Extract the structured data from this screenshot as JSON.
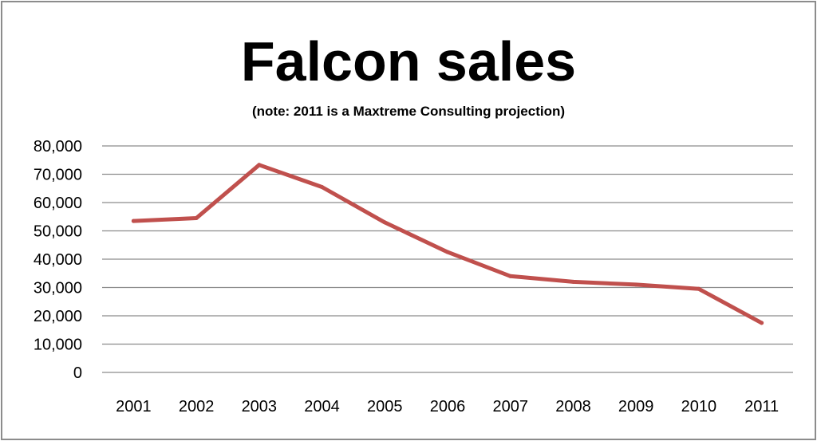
{
  "chart_data": {
    "type": "line",
    "title": "Falcon sales",
    "subtitle": "(note: 2011 is a Maxtreme Consulting projection)",
    "xlabel": "",
    "ylabel": "",
    "categories": [
      "2001",
      "2002",
      "2003",
      "2004",
      "2005",
      "2006",
      "2007",
      "2008",
      "2009",
      "2010",
      "2011"
    ],
    "series": [
      {
        "values": [
          53500,
          54500,
          73300,
          65500,
          53000,
          42500,
          34000,
          32000,
          31000,
          29500,
          17500
        ],
        "color": "#c0504d"
      }
    ],
    "ylim": [
      0,
      80000
    ],
    "y_ticks": [
      0,
      10000,
      20000,
      30000,
      40000,
      50000,
      60000,
      70000,
      80000
    ],
    "y_tick_labels": [
      "0",
      "10,000",
      "20,000",
      "30,000",
      "40,000",
      "50,000",
      "60,000",
      "70,000",
      "80,000"
    ],
    "grid": true,
    "legend": "none"
  }
}
